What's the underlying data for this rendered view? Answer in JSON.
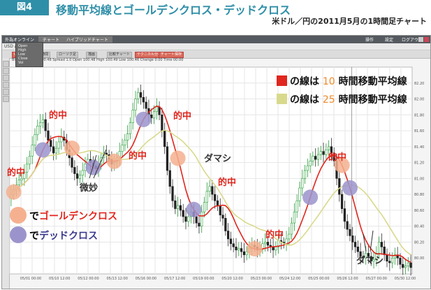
{
  "header": {
    "badge": "図4",
    "title": "移動平均線とゴールデンクロス・デッドクロス",
    "subtitle": "米ドル／円の2011月5月の1時間足チャート"
  },
  "app": {
    "menu": [
      "外為オンライン",
      "チャート",
      "ハイブリッドチャート",
      "操作",
      "設定",
      "ログアウト"
    ],
    "address": "USD / JPY",
    "toolbar": [
      "USD/JPY",
      "1時間",
      "ローソク足",
      "描画",
      "比較チャート",
      "テクニカル分析",
      "チャート保存"
    ],
    "quote_line": "Bid 100.46  Ask 100.48  Spread 1.0  Open 100.48  High 100.49  Low 100.46  Change 0.00  Time 00:00",
    "info_box": [
      "Open",
      "High",
      "Low",
      "Close",
      "Vol"
    ]
  },
  "legend": {
    "red_prefix": "の線は",
    "red_num": "10",
    "red_suffix": "時間移動平均線",
    "yellow_prefix": "の線は",
    "yellow_num": "25",
    "yellow_suffix": "時間移動平均線",
    "red_color": "#e0261e",
    "yellow_color": "#d9d98c",
    "num_color": "#f08a28"
  },
  "key": {
    "golden_prefix": "で",
    "golden_label": "ゴールデンクロス",
    "dead_prefix": "で",
    "dead_label": "デッドクロス",
    "golden_color": "#f5b08f",
    "dead_color": "#9b94cc",
    "golden_text_color": "#e0261e",
    "dead_text_color": "#3b3a8f"
  },
  "annotations": {
    "hit": "的中",
    "fake": "ダマシ",
    "subtle": "微妙"
  },
  "chart_data": {
    "type": "line",
    "title": "",
    "xlabel": "",
    "ylabel": "",
    "ylim": [
      79.8,
      82.4
    ],
    "y_ticks": [
      "80.00",
      "80.20",
      "80.40",
      "80.60",
      "80.80",
      "81.00",
      "81.20",
      "81.40",
      "81.60",
      "81.80",
      "82.00",
      "82.20"
    ],
    "x_ticks": [
      "05/01 00:00",
      "05/10 12:00",
      "05/12 00:00",
      "05/13 12:00",
      "05/16 00:00",
      "05/17 12:00",
      "05/19 00:00",
      "05/20 12:00",
      "05/23 00:00",
      "05/24 12:00",
      "05/25 00:00",
      "05/26 12:00",
      "05/27 00:00",
      "05/30 12:00"
    ],
    "close": [
      80.8,
      80.86,
      80.92,
      80.98,
      81.0,
      81.08,
      81.18,
      81.28,
      81.42,
      81.55,
      81.66,
      81.7,
      81.74,
      81.6,
      81.48,
      81.4,
      81.32,
      81.38,
      81.46,
      81.52,
      81.48,
      81.36,
      81.26,
      81.14,
      81.06,
      81.0,
      81.04,
      81.1,
      81.18,
      81.24,
      81.2,
      81.16,
      81.12,
      81.18,
      81.26,
      81.32,
      81.3,
      81.24,
      81.18,
      81.2,
      81.26,
      81.34,
      81.42,
      81.48,
      81.56,
      81.7,
      81.86,
      82.0,
      82.08,
      82.02,
      81.96,
      81.88,
      81.8,
      81.76,
      81.84,
      81.9,
      81.8,
      81.6,
      81.4,
      81.1,
      80.9,
      80.72,
      80.62,
      80.66,
      80.6,
      80.52,
      80.46,
      80.52,
      80.58,
      80.52,
      80.44,
      80.4,
      80.58,
      80.7,
      80.84,
      80.9,
      80.8,
      80.72,
      80.66,
      80.54,
      80.5,
      80.34,
      80.24,
      80.18,
      80.14,
      80.1,
      80.12,
      80.08,
      80.04,
      80.08,
      80.12,
      80.16,
      80.14,
      80.1,
      80.12,
      80.18,
      80.2,
      80.16,
      80.14,
      80.1,
      80.14,
      80.22,
      80.2,
      80.18,
      80.24,
      80.3,
      80.44,
      80.58,
      80.72,
      80.88,
      81.0,
      81.1,
      81.16,
      81.22,
      81.28,
      81.24,
      81.3,
      81.34,
      81.3,
      81.36,
      81.4,
      81.32,
      81.22,
      81.0,
      80.8,
      80.62,
      80.46,
      80.36,
      80.28,
      80.2,
      80.14,
      80.08,
      80.02,
      80.0,
      80.06,
      80.02,
      79.96,
      79.98,
      80.06,
      80.2,
      80.14,
      80.04,
      79.96,
      79.94,
      80.0,
      80.04,
      80.0,
      79.92,
      79.88,
      79.9,
      79.94,
      79.88
    ],
    "series": [
      {
        "name": "10時間移動平均線",
        "color": "#e0261e",
        "period": 10
      },
      {
        "name": "25時間移動平均線",
        "color": "#d9d98c",
        "period": 25
      }
    ],
    "crosses": [
      {
        "type": "golden",
        "at": 1
      },
      {
        "type": "dead",
        "at": 12
      },
      {
        "type": "golden",
        "at": 23
      },
      {
        "type": "dead",
        "at": 31
      },
      {
        "type": "golden",
        "at": 39
      },
      {
        "type": "dead",
        "at": 50
      },
      {
        "type": "golden",
        "at": 63
      },
      {
        "type": "dead",
        "at": 69
      },
      {
        "type": "golden",
        "at": 92
      },
      {
        "type": "dead",
        "at": 113
      },
      {
        "type": "golden",
        "at": 125
      },
      {
        "type": "dead",
        "at": 128
      }
    ]
  }
}
